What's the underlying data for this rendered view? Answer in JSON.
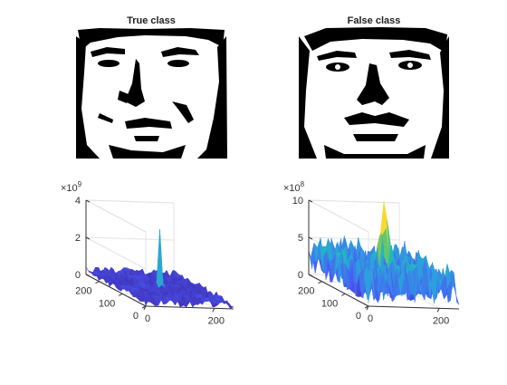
{
  "figure": {
    "panels": [
      {
        "title": "True class",
        "image": "binarized face"
      },
      {
        "title": "False class",
        "image": "binarized face"
      }
    ]
  },
  "chart_data": [
    {
      "type": "surface",
      "title": "",
      "exponent_base": "×10",
      "exponent_power": "9",
      "z_ticks": [
        "0",
        "2",
        "4"
      ],
      "x_ticks": [
        "0",
        "200"
      ],
      "y_ticks": [
        "0",
        "100",
        "200"
      ],
      "xlim": [
        0,
        256
      ],
      "ylim": [
        0,
        256
      ],
      "zlim": [
        0,
        4
      ],
      "peak": {
        "x": 128,
        "y": 128,
        "z": 3.2
      },
      "baseline_range": [
        0,
        0.45
      ],
      "colormap": [
        "#3e26a8",
        "#4a5af5",
        "#2e9edf",
        "#1bc7a9",
        "#b8c22e",
        "#f9d92e"
      ]
    },
    {
      "type": "surface",
      "title": "",
      "exponent_base": "×10",
      "exponent_power": "8",
      "z_ticks": [
        "0",
        "5",
        "10"
      ],
      "x_ticks": [
        "0",
        "200"
      ],
      "y_ticks": [
        "0",
        "100",
        "200"
      ],
      "xlim": [
        0,
        256
      ],
      "ylim": [
        0,
        256
      ],
      "zlim": [
        0,
        10
      ],
      "peak": {
        "x": 128,
        "y": 128,
        "z": 7.6
      },
      "baseline_range": [
        0.5,
        5.5
      ],
      "colormap": [
        "#3e26a8",
        "#4a5af5",
        "#2e9edf",
        "#1bc7a9",
        "#b8c22e",
        "#f9d92e"
      ]
    }
  ]
}
